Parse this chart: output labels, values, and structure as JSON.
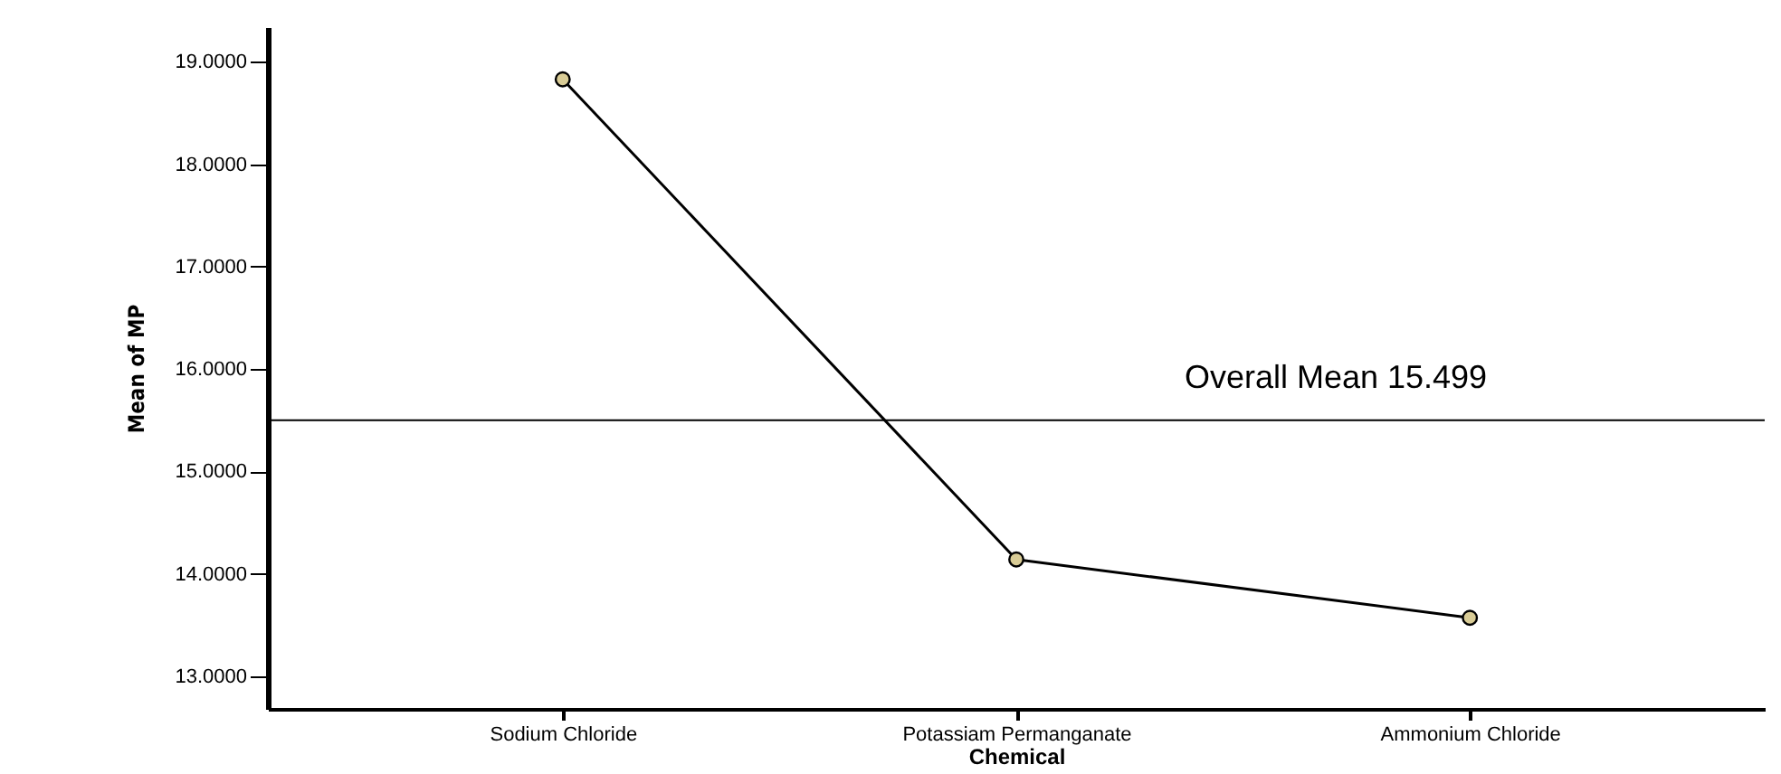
{
  "chart_data": {
    "type": "line",
    "xlabel": "Chemical",
    "ylabel": "Mean of MP",
    "categories": [
      "Sodium Chloride",
      "Potassiam Permanganate",
      "Ammonium Chloride"
    ],
    "series": [
      {
        "color": "#000000",
        "values": [
          18.83,
          14.14,
          13.57
        ]
      }
    ],
    "ylim": [
      12.68,
      19.34
    ],
    "yticks": [
      {
        "value": 13,
        "label": "13.0000"
      },
      {
        "value": 14,
        "label": "14.0000"
      },
      {
        "value": 15,
        "label": "15.0000"
      },
      {
        "value": 16,
        "label": "16.0000"
      },
      {
        "value": 17,
        "label": "17.0000"
      },
      {
        "value": 18,
        "label": "18.0000"
      },
      {
        "value": 19,
        "label": "19.0000"
      }
    ],
    "ref_lines": [
      {
        "axis": "y",
        "value": 15.499,
        "label": "Overall Mean   15.499"
      }
    ],
    "marker": "circle",
    "grid": false
  }
}
